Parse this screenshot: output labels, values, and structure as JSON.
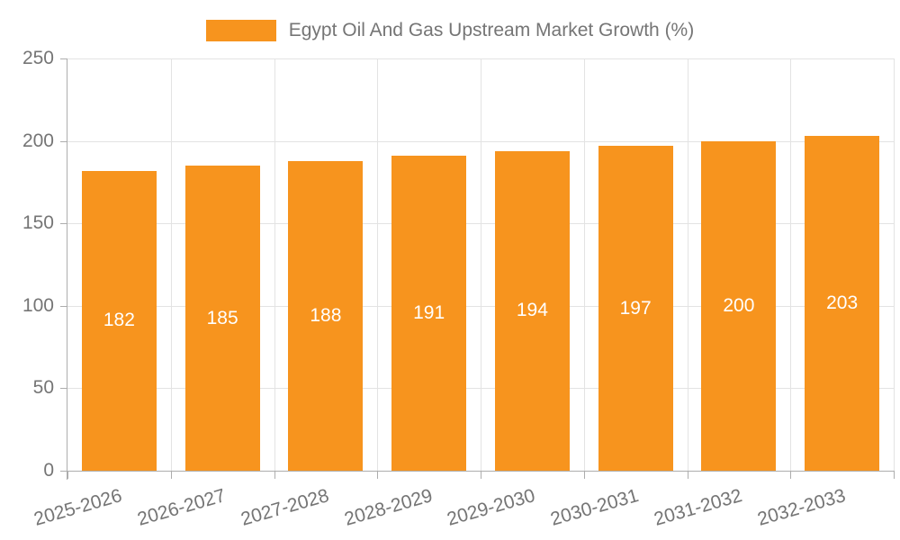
{
  "legend": {
    "series_label": "Egypt Oil And Gas Upstream Market Growth (%)"
  },
  "chart_data": {
    "type": "bar",
    "title": "Egypt Oil And Gas Upstream Market Growth (%)",
    "categories": [
      "2025-2026",
      "2026-2027",
      "2027-2028",
      "2028-2029",
      "2029-2030",
      "2030-2031",
      "2031-2032",
      "2032-2033"
    ],
    "values": [
      182,
      185,
      188,
      191,
      194,
      197,
      200,
      203
    ],
    "xlabel": "",
    "ylabel": "",
    "ylim": [
      0,
      250
    ],
    "yticks": [
      0,
      50,
      100,
      150,
      200,
      250
    ],
    "grid": true,
    "legend_position": "top",
    "colors": {
      "bar": "#F7941E",
      "bar_value_text": "#FFFFFF",
      "axis_text": "#757575",
      "grid_line": "#E3E3E3",
      "axis_line": "#ADADAD"
    }
  }
}
